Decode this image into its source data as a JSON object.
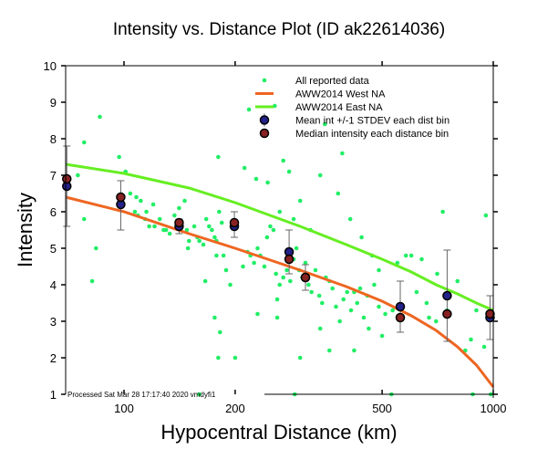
{
  "chart_data": {
    "type": "scatter",
    "title": "Intensity vs. Distance Plot (ID ak22614036)",
    "xlabel": "Hypocentral Distance (km)",
    "ylabel": "Intensity",
    "xscale": "log",
    "xlim": [
      69.5,
      1000
    ],
    "ylim": [
      1,
      10
    ],
    "xticks": [
      100,
      200,
      500,
      1000
    ],
    "xtick_labels": [
      "100",
      "200",
      "500",
      "1000"
    ],
    "yticks": [
      1,
      2,
      3,
      4,
      5,
      6,
      7,
      8,
      9,
      10
    ],
    "ytick_labels": [
      "1",
      "2",
      "3",
      "4",
      "5",
      "6",
      "7",
      "8",
      "9",
      "10"
    ],
    "grid": false,
    "legend_position": "top-right",
    "footer": "Processed Sat Mar 28 17:17:40 2020 vmdyfi1",
    "colors": {
      "reported": "#22ee66",
      "west": "#ee6622",
      "east": "#66ee22",
      "mean": "#222288",
      "median": "#882222",
      "errorbar": "#666666"
    },
    "legend": [
      {
        "label": "All reported data",
        "kind": "dot"
      },
      {
        "label": "AWW2014 West NA",
        "kind": "line-west"
      },
      {
        "label": "AWW2014 East NA",
        "kind": "line-east"
      },
      {
        "label": "Mean int +/-1 STDEV each dist bin",
        "kind": "mean"
      },
      {
        "label": "Median intensity each distance bin",
        "kind": "median"
      }
    ],
    "series": [
      {
        "name": "All reported data",
        "points": [
          [
            75,
            7.0
          ],
          [
            78,
            7.9
          ],
          [
            78,
            5.8
          ],
          [
            86,
            8.6
          ],
          [
            84,
            5.0
          ],
          [
            82,
            4.1
          ],
          [
            97,
            7.5
          ],
          [
            101,
            7.1
          ],
          [
            104,
            6.5
          ],
          [
            108,
            6.4
          ],
          [
            111,
            6.3
          ],
          [
            115,
            6.0
          ],
          [
            120,
            6.2
          ],
          [
            107,
            6.0
          ],
          [
            109,
            5.9
          ],
          [
            114,
            5.8
          ],
          [
            117,
            5.6
          ],
          [
            121,
            5.6
          ],
          [
            125,
            5.8
          ],
          [
            128,
            5.5
          ],
          [
            130,
            5.5
          ],
          [
            133,
            5.4
          ],
          [
            137,
            5.9
          ],
          [
            141,
            6.1
          ],
          [
            146,
            6.3
          ],
          [
            148,
            5.5
          ],
          [
            150,
            5.2
          ],
          [
            149,
            5.0
          ],
          [
            155,
            5.6
          ],
          [
            158,
            5.3
          ],
          [
            160,
            5.2
          ],
          [
            164,
            5.1
          ],
          [
            167,
            5.8
          ],
          [
            170,
            5.6
          ],
          [
            173,
            5.5
          ],
          [
            176,
            5.3
          ],
          [
            178,
            5.2
          ],
          [
            181,
            6.0
          ],
          [
            184,
            5.7
          ],
          [
            186,
            4.8
          ],
          [
            189,
            4.4
          ],
          [
            194,
            4.0
          ],
          [
            178,
            4.8
          ],
          [
            166,
            4.1
          ],
          [
            176,
            3.1
          ],
          [
            182,
            2.7
          ],
          [
            180,
            2.0
          ],
          [
            200,
            2.0
          ],
          [
            210,
            4.5
          ],
          [
            216,
            4.9
          ],
          [
            220,
            4.8
          ],
          [
            225,
            4.6
          ],
          [
            230,
            5.0
          ],
          [
            234,
            4.8
          ],
          [
            240,
            4.5
          ],
          [
            244,
            5.3
          ],
          [
            249,
            5.6
          ],
          [
            254,
            5.5
          ],
          [
            258,
            4.3
          ],
          [
            264,
            4.0
          ],
          [
            260,
            3.6
          ],
          [
            270,
            4.2
          ],
          [
            276,
            4.4
          ],
          [
            282,
            4.1
          ],
          [
            288,
            4.7
          ],
          [
            293,
            5.0
          ],
          [
            298,
            4.4
          ],
          [
            304,
            4.2
          ],
          [
            310,
            4.6
          ],
          [
            316,
            4.0
          ],
          [
            322,
            3.8
          ],
          [
            330,
            4.4
          ],
          [
            338,
            3.7
          ],
          [
            344,
            3.5
          ],
          [
            352,
            4.2
          ],
          [
            360,
            4.1
          ],
          [
            367,
            3.9
          ],
          [
            375,
            3.4
          ],
          [
            384,
            3.0
          ],
          [
            393,
            3.6
          ],
          [
            402,
            3.8
          ],
          [
            412,
            3.3
          ],
          [
            420,
            3.8
          ],
          [
            428,
            3.5
          ],
          [
            436,
            3.9
          ],
          [
            446,
            3.1
          ],
          [
            456,
            3.7
          ],
          [
            476,
            4.0
          ],
          [
            490,
            3.4
          ],
          [
            510,
            3.2
          ],
          [
            534,
            3.3
          ],
          [
            580,
            4.8
          ],
          [
            600,
            4.8
          ],
          [
            640,
            4.7
          ],
          [
            660,
            3.5
          ],
          [
            700,
            3.0
          ],
          [
            730,
            6.0
          ],
          [
            705,
            4.3
          ],
          [
            750,
            3.3
          ],
          [
            760,
            3.2
          ],
          [
            800,
            4.1
          ],
          [
            870,
            2.5
          ],
          [
            900,
            3.3
          ],
          [
            955,
            5.9
          ],
          [
            985,
            1.0
          ],
          [
            945,
            2.3
          ],
          [
            218,
            8.8
          ],
          [
            256,
            8.9
          ],
          [
            270,
            7.4
          ],
          [
            280,
            7.1
          ],
          [
            350,
            8.4
          ],
          [
            390,
            7.6
          ],
          [
            212,
            7.2
          ],
          [
            245,
            6.8
          ],
          [
            340,
            7.0
          ],
          [
            380,
            6.5
          ],
          [
            410,
            5.8
          ],
          [
            440,
            5.3
          ],
          [
            180,
            7.5
          ],
          [
            300,
            6.3
          ],
          [
            228,
            6.9
          ],
          [
            264,
            6.0
          ],
          [
            288,
            5.8
          ],
          [
            320,
            5.5
          ],
          [
            470,
            4.8
          ],
          [
            490,
            4.4
          ],
          [
            550,
            4.6
          ],
          [
            620,
            3.8
          ],
          [
            670,
            3.1
          ],
          [
            230,
            3.2
          ],
          [
            260,
            3.1
          ],
          [
            300,
            2.0
          ],
          [
            340,
            2.8
          ],
          [
            360,
            2.2
          ],
          [
            420,
            2.2
          ],
          [
            460,
            2.8
          ],
          [
            500,
            2.6
          ],
          [
            840,
            2.2
          ],
          [
            530,
            1.0
          ],
          [
            880,
            1.0
          ],
          [
            290,
            1.0
          ],
          [
            160,
            1.0
          ]
        ]
      },
      {
        "name": "AWW2014 West NA",
        "x": [
          69.5,
          100,
          150,
          200,
          300,
          400,
          500,
          600,
          700,
          800,
          900,
          1000
        ],
        "y": [
          6.4,
          6.0,
          5.4,
          5.0,
          4.4,
          3.95,
          3.55,
          3.15,
          2.75,
          2.3,
          1.8,
          1.2
        ]
      },
      {
        "name": "AWW2014 East NA",
        "x": [
          69.5,
          100,
          150,
          200,
          300,
          400,
          500,
          600,
          700,
          800,
          900,
          1000
        ],
        "y": [
          7.3,
          7.05,
          6.65,
          6.25,
          5.6,
          5.1,
          4.7,
          4.35,
          4.0,
          3.75,
          3.5,
          3.3
        ]
      },
      {
        "name": "Mean int +/-1 STDEV each dist bin",
        "x": [
          70,
          98,
          141,
          199,
          280,
          310,
          560,
          750,
          980
        ],
        "y": [
          6.7,
          6.2,
          5.6,
          5.6,
          4.9,
          4.2,
          3.4,
          3.7,
          3.1
        ],
        "stdev_low": [
          5.6,
          5.5,
          5.4,
          5.3,
          4.3,
          3.85,
          2.7,
          2.45,
          2.5
        ],
        "stdev_high": [
          7.8,
          6.85,
          5.8,
          6.0,
          5.5,
          4.55,
          4.1,
          4.95,
          3.7
        ]
      },
      {
        "name": "Median intensity each distance bin",
        "x": [
          70,
          98,
          141,
          199,
          280,
          310,
          560,
          750,
          980
        ],
        "y": [
          6.9,
          6.4,
          5.7,
          5.7,
          4.7,
          4.2,
          3.1,
          3.2,
          3.2
        ]
      }
    ]
  }
}
